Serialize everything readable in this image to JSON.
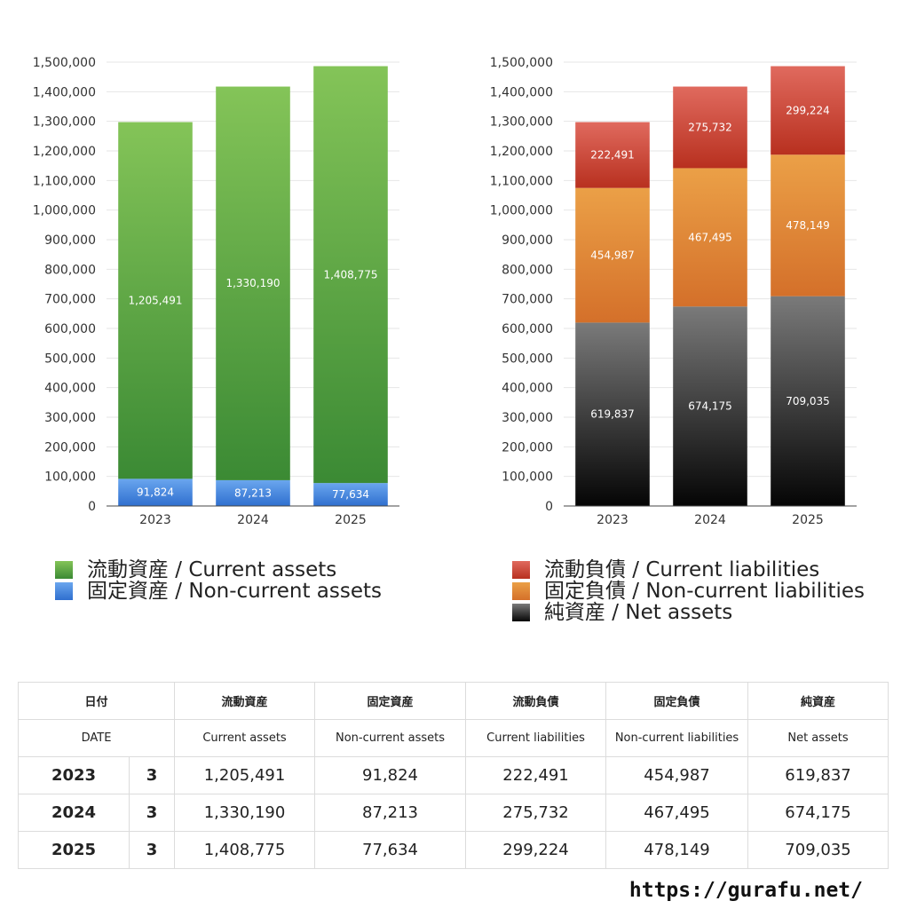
{
  "chart_data": [
    {
      "type": "bar",
      "stacked": true,
      "categories": [
        "2023",
        "2024",
        "2025"
      ],
      "series": [
        {
          "name": "固定資産 / Non-current assets",
          "values": [
            91824,
            87213,
            77634
          ],
          "color": "#3d7fd8"
        },
        {
          "name": "流動資産 / Current assets",
          "values": [
            1205491,
            1330190,
            1408775
          ],
          "color": "#4e9f3d"
        }
      ],
      "data_labels": [
        {
          "values": [
            "91,824",
            "87,213",
            "77,634"
          ]
        },
        {
          "values": [
            "1,205,491",
            "1,330,190",
            "1,408,775"
          ]
        }
      ],
      "y_ticks": [
        "0",
        "100,000",
        "200,000",
        "300,000",
        "400,000",
        "500,000",
        "600,000",
        "700,000",
        "800,000",
        "900,000",
        "1,000,000",
        "1,100,000",
        "1,200,000",
        "1,300,000",
        "1,400,000",
        "1,500,000"
      ],
      "ylim": [
        0,
        1500000
      ],
      "grid": true,
      "legend": "bottom"
    },
    {
      "type": "bar",
      "stacked": true,
      "categories": [
        "2023",
        "2024",
        "2025"
      ],
      "series": [
        {
          "name": "純資産 / Net assets",
          "values": [
            619837,
            674175,
            709035
          ],
          "color": "#222222"
        },
        {
          "name": "固定負債 / Non-current liabilities",
          "values": [
            454987,
            467495,
            478149
          ],
          "color": "#e08a35"
        },
        {
          "name": "流動負債 / Current liabilities",
          "values": [
            222491,
            275732,
            299224
          ],
          "color": "#d24a3a"
        }
      ],
      "data_labels": [
        {
          "values": [
            "619,837",
            "674,175",
            "709,035"
          ]
        },
        {
          "values": [
            "454,987",
            "467,495",
            "478,149"
          ]
        },
        {
          "values": [
            "222,491",
            "275,732",
            "299,224"
          ]
        }
      ],
      "y_ticks": [
        "0",
        "100,000",
        "200,000",
        "300,000",
        "400,000",
        "500,000",
        "600,000",
        "700,000",
        "800,000",
        "900,000",
        "1,000,000",
        "1,100,000",
        "1,200,000",
        "1,300,000",
        "1,400,000",
        "1,500,000"
      ],
      "ylim": [
        0,
        1500000
      ],
      "grid": true,
      "legend": "bottom"
    }
  ],
  "legend_left": [
    {
      "label": "流動資産 / Current assets",
      "color": "#5fae45"
    },
    {
      "label": "固定資産 / Non-current assets",
      "color": "#3d7fd8"
    }
  ],
  "legend_right": [
    {
      "label": "流動負債 / Current liabilities",
      "color": "#d24a3a"
    },
    {
      "label": "固定負債 / Non-current liabilities",
      "color": "#e08a35"
    },
    {
      "label": "純資産 / Net assets",
      "color": "#222222"
    }
  ],
  "table": {
    "header_jp": [
      "日付",
      "流動資産",
      "固定資産",
      "流動負債",
      "固定負債",
      "純資産"
    ],
    "header_en": [
      "DATE",
      "Current assets",
      "Non-current assets",
      "Current liabilities",
      "Non-current liabilities",
      "Net assets"
    ],
    "rows": [
      {
        "year": "2023",
        "month": "3",
        "values": [
          "1,205,491",
          "91,824",
          "222,491",
          "454,987",
          "619,837"
        ]
      },
      {
        "year": "2024",
        "month": "3",
        "values": [
          "1,330,190",
          "87,213",
          "275,732",
          "467,495",
          "674,175"
        ]
      },
      {
        "year": "2025",
        "month": "3",
        "values": [
          "1,408,775",
          "77,634",
          "299,224",
          "478,149",
          "709,035"
        ]
      }
    ]
  },
  "site_url": "https://gurafu.net/"
}
